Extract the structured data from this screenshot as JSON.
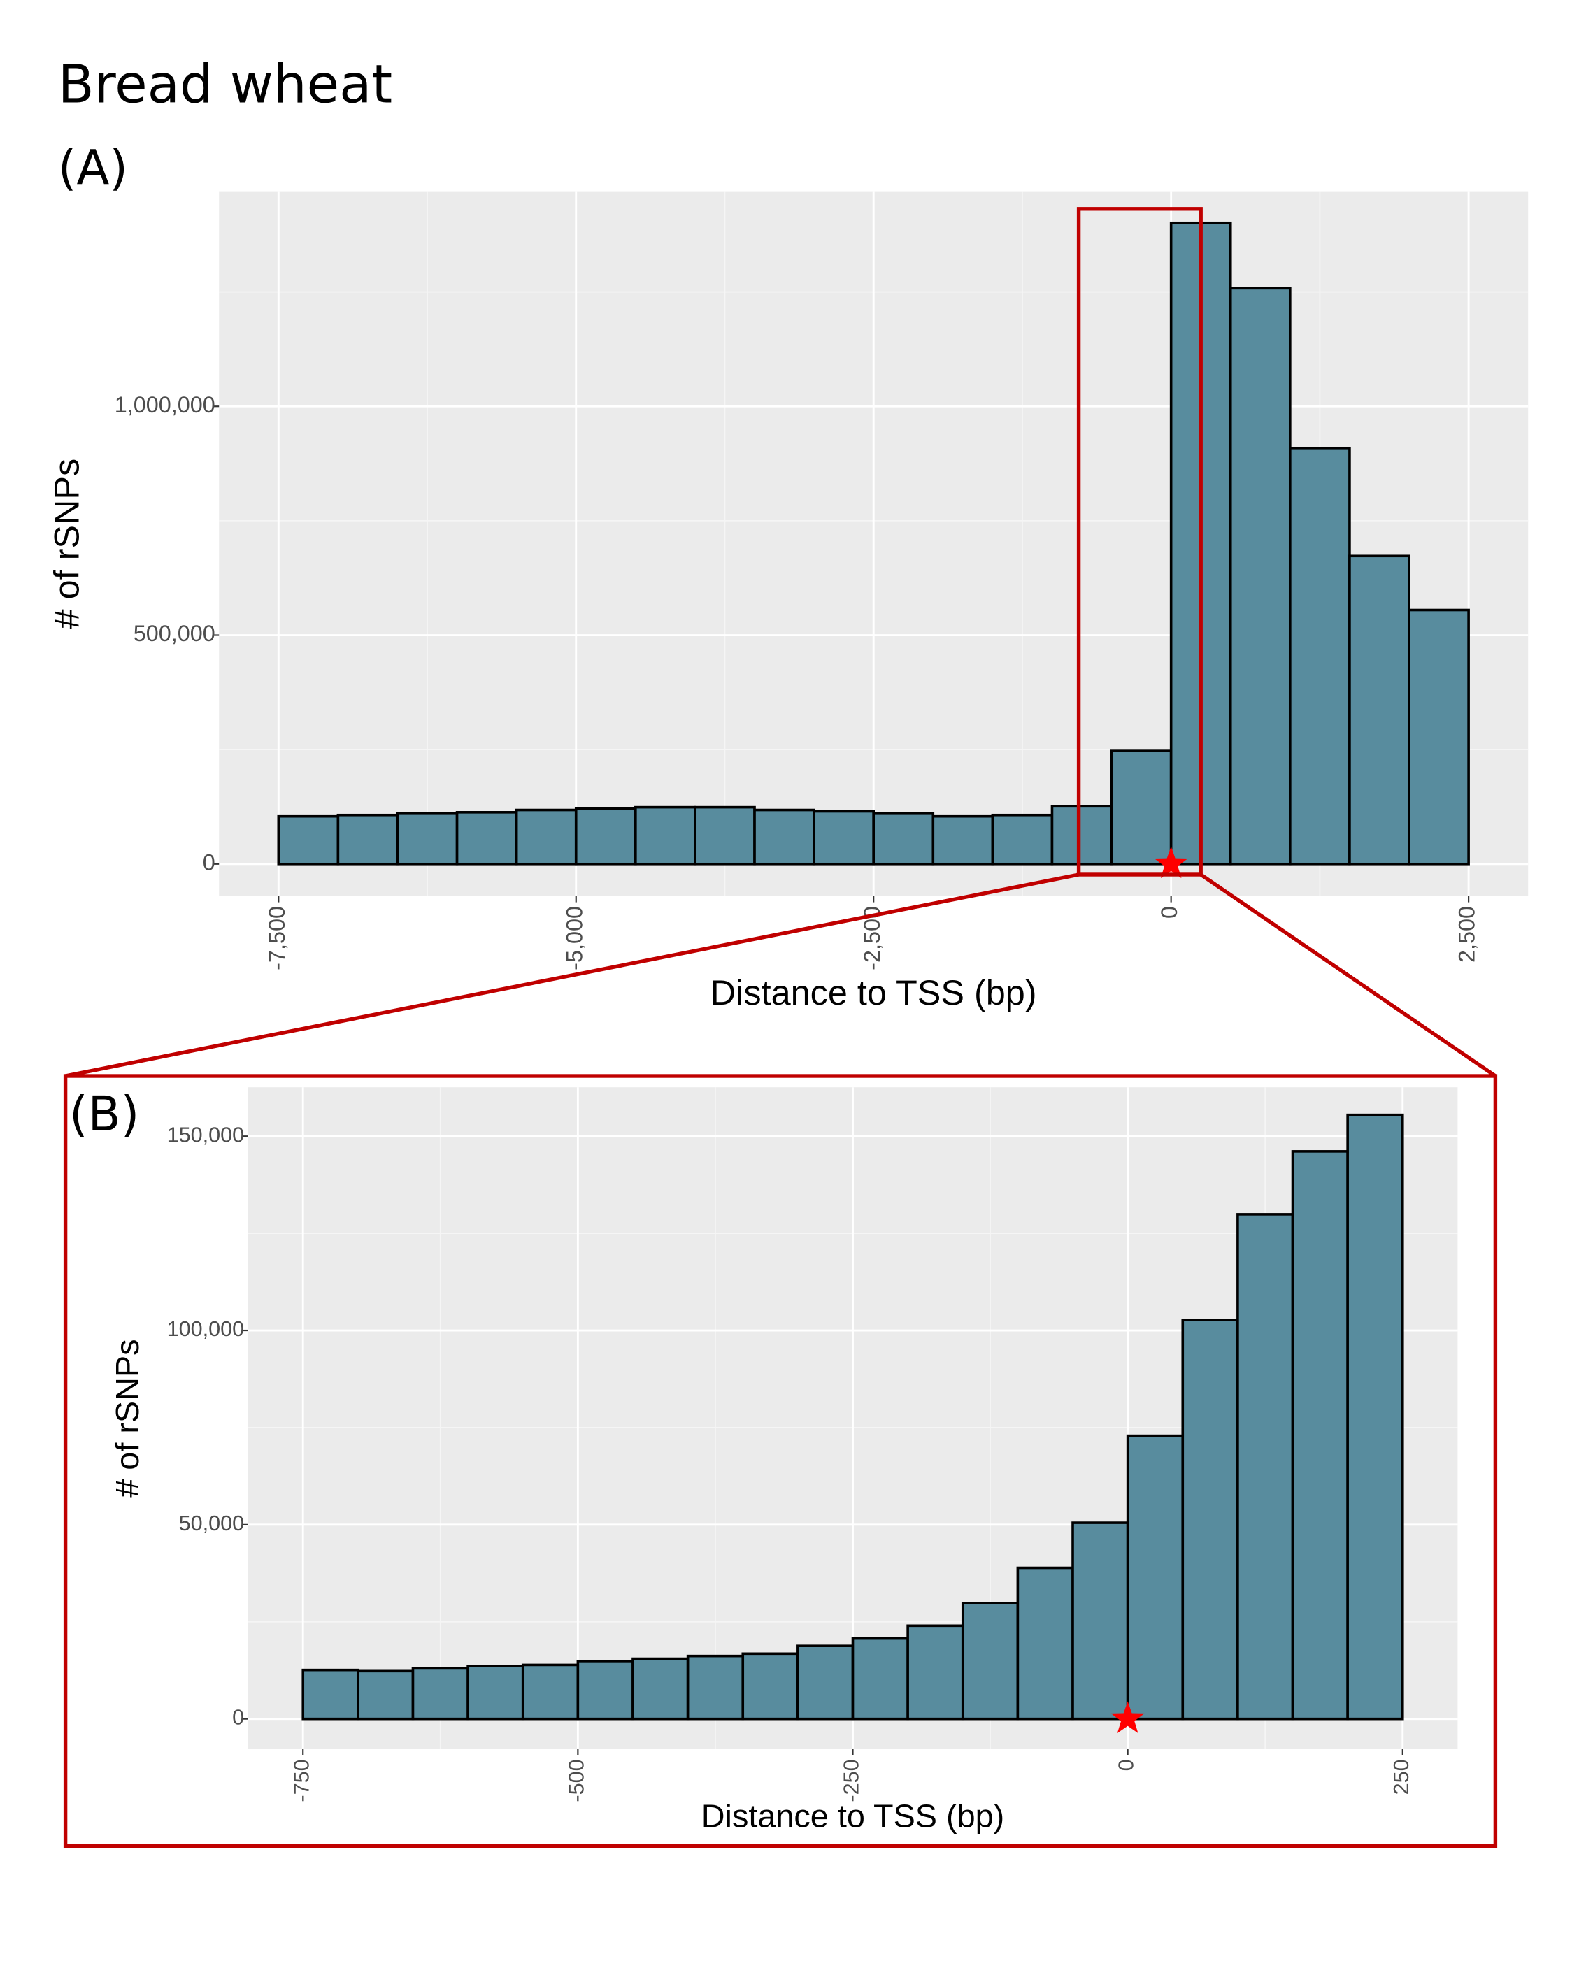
{
  "title": "Bread wheat",
  "chart_data": [
    {
      "type": "histogram",
      "panel_label": "(A)",
      "bins": [
        -7500,
        -7000,
        -6500,
        -6000,
        -5500,
        -5000,
        -4500,
        -4000,
        -3500,
        -3000,
        -2500,
        -2000,
        -1500,
        -1000,
        -500,
        0,
        500,
        1000,
        1500,
        2000,
        2500
      ],
      "values": [
        104000,
        107000,
        110000,
        113000,
        118000,
        121000,
        124000,
        124000,
        118000,
        115000,
        110000,
        104000,
        107000,
        126000,
        247000,
        1401000,
        1258000,
        909000,
        673000,
        555000
      ],
      "color": "#588c9e",
      "xlabel": "Distance to TSS (bp)",
      "ylabel": "# of rSNPs",
      "xlim": [
        -8000,
        3000
      ],
      "ylim": [
        -70000,
        1470000
      ],
      "xticks": [
        {
          "value": -7500,
          "label": "-7,500"
        },
        {
          "value": -5000,
          "label": "-5,000"
        },
        {
          "value": -2500,
          "label": "-2,500"
        },
        0,
        {
          "value": 2500,
          "label": "2,500"
        }
      ],
      "yticks": [
        0,
        {
          "value": 500000,
          "label": "500,000"
        },
        {
          "value": 1000000,
          "label": "1,000,000"
        }
      ],
      "grid": true,
      "tss_marker": {
        "x": 0,
        "y": 0,
        "color": "#ff0000"
      }
    },
    {
      "type": "histogram",
      "panel_label": "(B)",
      "bins": [
        -750,
        -700,
        -650,
        -600,
        -550,
        -500,
        -450,
        -400,
        -350,
        -300,
        -250,
        -200,
        -150,
        -100,
        -50,
        0,
        50,
        100,
        150,
        200,
        250
      ],
      "values": [
        12600,
        12300,
        13000,
        13600,
        13900,
        14900,
        15500,
        16200,
        16800,
        18800,
        20700,
        24000,
        29800,
        38900,
        50500,
        72900,
        102700,
        129900,
        146100,
        155500
      ],
      "color": "#588c9e",
      "xlabel": "Distance to TSS (bp)",
      "ylabel": "# of rSNPs",
      "xlim": [
        -800,
        300
      ],
      "ylim": [
        -7800,
        162600
      ],
      "xticks": [
        -750,
        -500,
        -250,
        0,
        250
      ],
      "yticks": [
        0,
        {
          "value": 50000,
          "label": "50,000"
        },
        {
          "value": 100000,
          "label": "100,000"
        },
        {
          "value": 150000,
          "label": "150,000"
        }
      ],
      "grid": true,
      "tss_marker": {
        "x": 0,
        "y": 0,
        "color": "#ff0000"
      }
    }
  ]
}
